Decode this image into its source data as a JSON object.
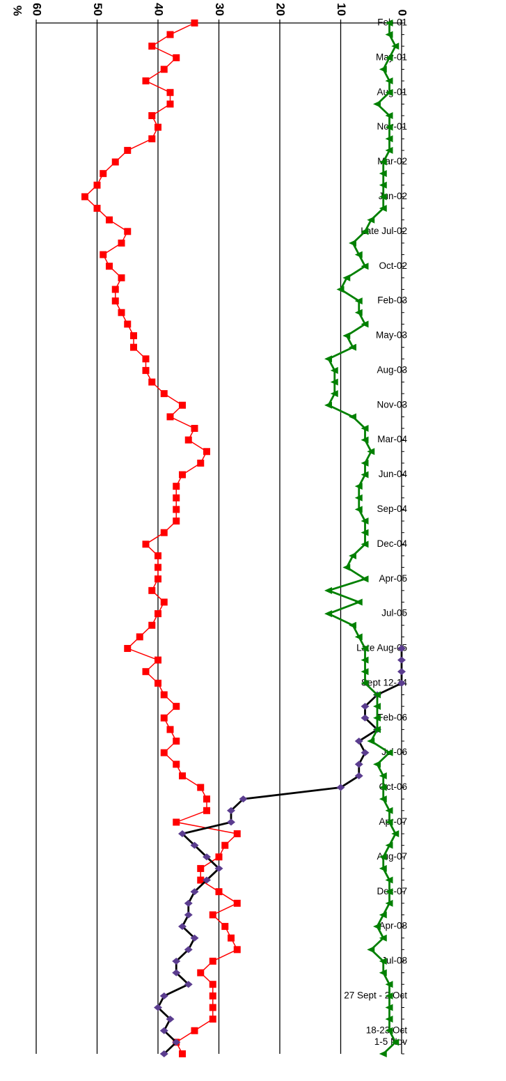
{
  "chart_data": {
    "type": "line",
    "orientation": "rotated 90deg clockwise (value axis runs along bottom edge, time axis along right edge)",
    "title": "",
    "xlabel": "",
    "ylabel": "%",
    "ylim": [
      0,
      60
    ],
    "yticks": [
      "0",
      "10",
      "20",
      "30",
      "40",
      "50",
      "60"
    ],
    "grid": "horizontal gridlines at 10, 20, 30, 40, 50, 60",
    "legend": "none",
    "x_tick_labels": [
      {
        "label": "Feb-01",
        "index": 0
      },
      {
        "label": "May-01",
        "index": 3
      },
      {
        "label": "Aug-01",
        "index": 6
      },
      {
        "label": "Nov-01",
        "index": 9
      },
      {
        "label": "Mar-02",
        "index": 12
      },
      {
        "label": "Jun-02",
        "index": 15
      },
      {
        "label": "Late Jul-02",
        "index": 18
      },
      {
        "label": "Oct-02",
        "index": 21
      },
      {
        "label": "Feb-03",
        "index": 24
      },
      {
        "label": "May-03",
        "index": 27
      },
      {
        "label": "Aug-03",
        "index": 30
      },
      {
        "label": "Nov-03",
        "index": 33
      },
      {
        "label": "Mar-04",
        "index": 36
      },
      {
        "label": "Jun-04",
        "index": 39
      },
      {
        "label": "Sep-04",
        "index": 42
      },
      {
        "label": "Dec-04",
        "index": 45
      },
      {
        "label": "Apr-05",
        "index": 48
      },
      {
        "label": "Jul-05",
        "index": 51
      },
      {
        "label": "Late Aug-05",
        "index": 54
      },
      {
        "label": "Sept 12-14",
        "index": 57
      },
      {
        "label": "Feb-06",
        "index": 60
      },
      {
        "label": "Jul-06",
        "index": 63
      },
      {
        "label": "Oct-06",
        "index": 66
      },
      {
        "label": "Apr-07",
        "index": 69
      },
      {
        "label": "Aug-07",
        "index": 72
      },
      {
        "label": "Dec-07",
        "index": 75
      },
      {
        "label": "Apr-08",
        "index": 78
      },
      {
        "label": "Jul-08",
        "index": 81
      },
      {
        "label": "27 Sept - 2 Oct",
        "index": 84
      },
      {
        "label": "18-23 Oct",
        "index": 87
      },
      {
        "label": "1-5 Nov",
        "index": 88
      }
    ],
    "series": [
      {
        "color": "#ff0000",
        "marker": "square",
        "start_index": 0,
        "values": [
          34,
          38,
          41,
          37,
          39,
          42,
          38,
          38,
          41,
          40,
          41,
          45,
          47,
          49,
          50,
          52,
          50,
          48,
          45,
          46,
          49,
          48,
          46,
          47,
          47,
          46,
          45,
          44,
          44,
          42,
          42,
          41,
          39,
          36,
          38,
          34,
          35,
          32,
          33,
          36,
          37,
          37,
          37,
          37,
          39,
          42,
          40,
          40,
          40,
          41,
          39,
          40,
          41,
          43,
          45,
          40,
          42,
          40,
          39,
          37,
          39,
          38,
          37,
          39,
          37,
          36,
          33,
          32,
          32,
          37,
          27,
          29,
          30,
          33,
          33,
          30,
          27,
          31,
          29,
          28,
          27,
          31,
          33,
          31,
          31,
          31,
          31,
          34,
          37,
          36
        ]
      },
      {
        "color": "#000000",
        "marker": "diamond",
        "marker_color": "#5b3d8f",
        "start_index": 54,
        "values": [
          0,
          0,
          0,
          0,
          4,
          6,
          6,
          4,
          7,
          6,
          7,
          7,
          10,
          26,
          28,
          28,
          36,
          34,
          32,
          30,
          32,
          34,
          35,
          35,
          36,
          34,
          35,
          37,
          37,
          35,
          39,
          40,
          38,
          39,
          37,
          39
        ]
      },
      {
        "color": "#008000",
        "marker": "triangle",
        "start_index": 0,
        "values": [
          2,
          2,
          1,
          2,
          3,
          2,
          2,
          4,
          2,
          2,
          2,
          2,
          3,
          3,
          3,
          3,
          3,
          5,
          6,
          8,
          7,
          6,
          9,
          10,
          7,
          7,
          6,
          9,
          8,
          12,
          11,
          11,
          11,
          12,
          8,
          6,
          6,
          5,
          6,
          6,
          7,
          7,
          7,
          6,
          6,
          6,
          8,
          9,
          6,
          12,
          7,
          12,
          8,
          7,
          6,
          6,
          6,
          6,
          4,
          4,
          4,
          4,
          5,
          2,
          4,
          3,
          3,
          3,
          2,
          2,
          1,
          2,
          3,
          3,
          2,
          2,
          2,
          3,
          4,
          3,
          5,
          3,
          3,
          2,
          2,
          2,
          2,
          2,
          1,
          3
        ]
      }
    ]
  }
}
